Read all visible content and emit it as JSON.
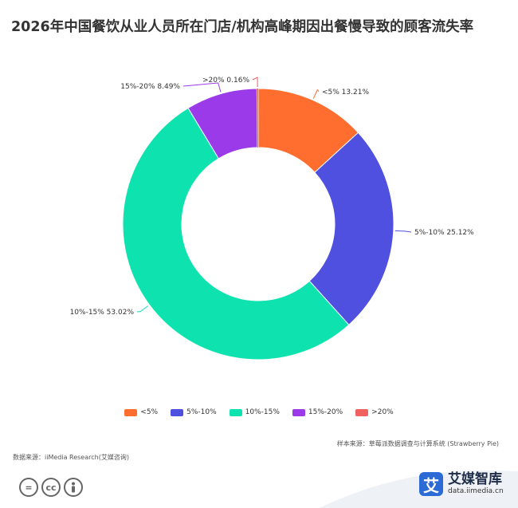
{
  "chart_data": {
    "type": "pie",
    "title": "2026年中国餐饮从业人员所在门店/机构高峰期因出餐慢导致的顾客流失率",
    "categories": [
      "<5%",
      "5%-10%",
      "10%-15%",
      "15%-20%",
      ">20%"
    ],
    "values": [
      13.21,
      25.12,
      53.02,
      8.49,
      0.16
    ],
    "data_labels": [
      "<5% 13.21%",
      "5%-10% 25.12%",
      "10%-15% 53.02%",
      "15%-20% 8.49%",
      ">20% 0.16%"
    ],
    "colors": [
      "#ff6e2e",
      "#5050e0",
      "#0ee3b0",
      "#9a3ae8",
      "#f0605e"
    ],
    "legend_position": "bottom"
  },
  "legend": [
    "<5%",
    "5%-10%",
    "10%-15%",
    "15%-20%",
    ">20%"
  ],
  "sample_source": "样本来源：草莓派数据调查与计算系统 (Strawberry Pie)",
  "data_source": "数据来源：iiMedia Research(艾媒咨询)",
  "brand": {
    "name": "艾媒智库",
    "url": "data.iimedia.cn",
    "logo_char": "艾"
  },
  "icons": [
    "equal-icon",
    "cc-icon",
    "person-icon"
  ]
}
